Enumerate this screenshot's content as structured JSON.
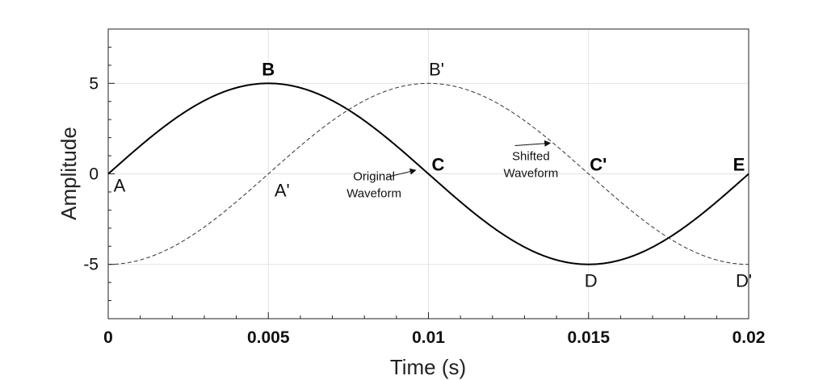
{
  "chart_data": {
    "type": "line",
    "title": "",
    "xlabel": "Time (s)",
    "ylabel": "Amplitude",
    "xlim": [
      0,
      0.02
    ],
    "ylim": [
      -8,
      8
    ],
    "grid": true,
    "xticks": [
      0,
      0.005,
      0.01,
      0.015,
      0.02
    ],
    "xtick_labels": [
      "0",
      "0.005",
      "0.01",
      "0.015",
      "0.02"
    ],
    "yticks": [
      5,
      0,
      -5
    ],
    "ytick_labels": [
      "5",
      "0",
      "-5"
    ],
    "series": [
      {
        "style": "solid",
        "color": "#000000",
        "function": "5*sin(2*pi*50*t)",
        "x": [
          0,
          0.005,
          0.01,
          0.015,
          0.02
        ],
        "y": [
          0,
          5,
          0,
          -5,
          0
        ]
      },
      {
        "style": "dashed",
        "color": "#333333",
        "function": "-5*cos(2*pi*50*t)",
        "x": [
          0,
          0.005,
          0.01,
          0.015,
          0.02
        ],
        "y": [
          -5,
          0,
          5,
          0,
          -5
        ]
      }
    ],
    "point_labels": [
      {
        "text": "A",
        "x": 0,
        "y": 0,
        "bold": false
      },
      {
        "text": "B",
        "x": 0.005,
        "y": 5,
        "bold": true
      },
      {
        "text": "C",
        "x": 0.01,
        "y": 0,
        "bold": true
      },
      {
        "text": "D",
        "x": 0.015,
        "y": -5,
        "bold": false
      },
      {
        "text": "E",
        "x": 0.02,
        "y": 0,
        "bold": true
      },
      {
        "text": "A'",
        "x": 0.005,
        "y": 0,
        "bold": false
      },
      {
        "text": "B'",
        "x": 0.01,
        "y": 5,
        "bold": false
      },
      {
        "text": "C'",
        "x": 0.015,
        "y": 0,
        "bold": true
      },
      {
        "text": "D'",
        "x": 0.02,
        "y": -5,
        "bold": false
      }
    ],
    "annotations": [
      {
        "lines": [
          "Original",
          "Waveform"
        ],
        "arrow_to": {
          "x": 0.0096,
          "y": 0.2
        }
      },
      {
        "lines": [
          "Shifted",
          "Waveform"
        ],
        "arrow_to": {
          "x": 0.0138,
          "y": 1.7
        }
      }
    ]
  }
}
